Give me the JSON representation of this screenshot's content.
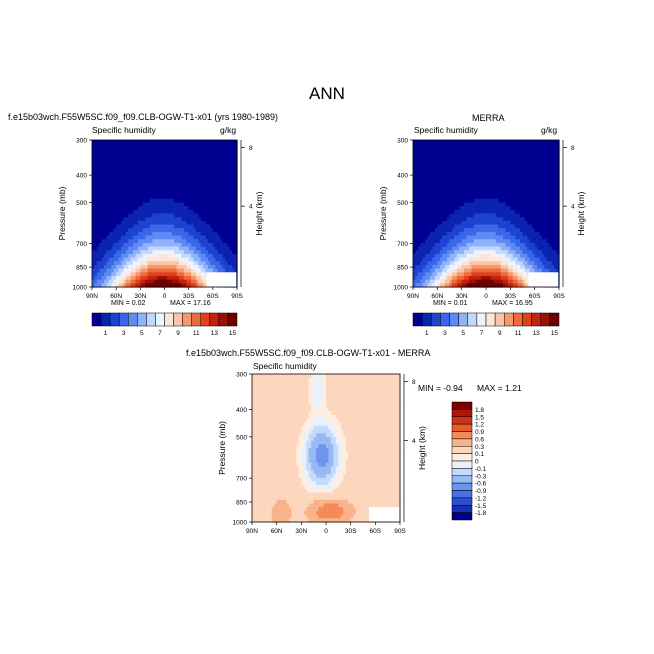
{
  "page": {
    "title": "ANN"
  },
  "panels": {
    "model": {
      "title": "f.e15b03wch.F55W5SC.f09_f09.CLB-OGW-T1-x01 (yrs 1980-1989)",
      "field": "Specific humidity",
      "units": "g/kg",
      "min_label": "MIN = 0.02",
      "max_label": "MAX = 17.16"
    },
    "obs": {
      "title": "MERRA",
      "field": "Specific humidity",
      "units": "g/kg",
      "min_label": "MIN = 0.01",
      "max_label": "MAX = 16.95"
    },
    "diff": {
      "title": "f.e15b03wch.F55W5SC.f09_f09.CLB-OGW-T1-x01 - MERRA",
      "field": "Specific humidity",
      "min_label": "MIN = -0.94",
      "max_label": "MAX = 1.21"
    }
  },
  "chart_data": [
    {
      "type": "heatmap",
      "title": "f.e15b03wch.F55W5SC.f09_f09.CLB-OGW-T1-x01 (yrs 1980-1989)",
      "subtitle": "Specific humidity",
      "units": "g/kg",
      "xlabel": "",
      "ylabel": "Pressure (mb)",
      "y2label": "Height (km)",
      "x_ticks": [
        "90N",
        "60N",
        "30N",
        "0",
        "30S",
        "60S",
        "90S"
      ],
      "y_ticks": [
        300,
        400,
        500,
        700,
        850,
        1000
      ],
      "y2_ticks": [
        8,
        4
      ],
      "ylim": [
        1000,
        300
      ],
      "min": 0.02,
      "max": 17.16,
      "colorbar": {
        "labels": [
          "1",
          "3",
          "5",
          "7",
          "9",
          "11",
          "13",
          "15"
        ],
        "colors": [
          "#000090",
          "#0a23b0",
          "#1d43d0",
          "#3a66e8",
          "#5f8af5",
          "#8fb2fb",
          "#c3d8fd",
          "#eef4ff",
          "#fde6d6",
          "#fbc6a6",
          "#f6976c",
          "#ee6a3e",
          "#e0401c",
          "#c4220c",
          "#9c0f04",
          "#6c0000"
        ]
      }
    },
    {
      "type": "heatmap",
      "title": "MERRA",
      "subtitle": "Specific humidity",
      "units": "g/kg",
      "ylabel": "Pressure (mb)",
      "y2label": "Height (km)",
      "x_ticks": [
        "90N",
        "60N",
        "30N",
        "0",
        "30S",
        "60S",
        "90S"
      ],
      "y_ticks": [
        300,
        400,
        500,
        700,
        850,
        1000
      ],
      "y2_ticks": [
        8,
        4
      ],
      "ylim": [
        1000,
        300
      ],
      "min": 0.01,
      "max": 16.95,
      "colorbar": {
        "labels": [
          "1",
          "3",
          "5",
          "7",
          "9",
          "11",
          "13",
          "15"
        ]
      }
    },
    {
      "type": "heatmap",
      "title": "f.e15b03wch.F55W5SC.f09_f09.CLB-OGW-T1-x01 - MERRA",
      "subtitle": "Specific humidity",
      "ylabel": "Pressure (mb)",
      "y2label": "Height (km)",
      "x_ticks": [
        "90N",
        "60N",
        "30N",
        "0",
        "30S",
        "60S",
        "90S"
      ],
      "y_ticks": [
        300,
        400,
        500,
        700,
        850,
        1000
      ],
      "y2_ticks": [
        8,
        4
      ],
      "ylim": [
        1000,
        300
      ],
      "min": -0.94,
      "max": 1.21,
      "colorbar": {
        "labels": [
          "1.8",
          "1.5",
          "1.2",
          "0.9",
          "0.6",
          "0.3",
          "0.1",
          "0",
          "-0.1",
          "-0.3",
          "-0.6",
          "-0.9",
          "-1.2",
          "-1.5",
          "-1.8"
        ],
        "colors": [
          "#7a0000",
          "#b0150a",
          "#d43016",
          "#ea5a2c",
          "#f48a58",
          "#f9b38a",
          "#fcd6bd",
          "#fdeee2",
          "#e8f1fd",
          "#c4dbfb",
          "#97baf6",
          "#6c95ee",
          "#4672e3",
          "#2a4fd0",
          "#1530b3",
          "#00008c"
        ]
      }
    }
  ]
}
